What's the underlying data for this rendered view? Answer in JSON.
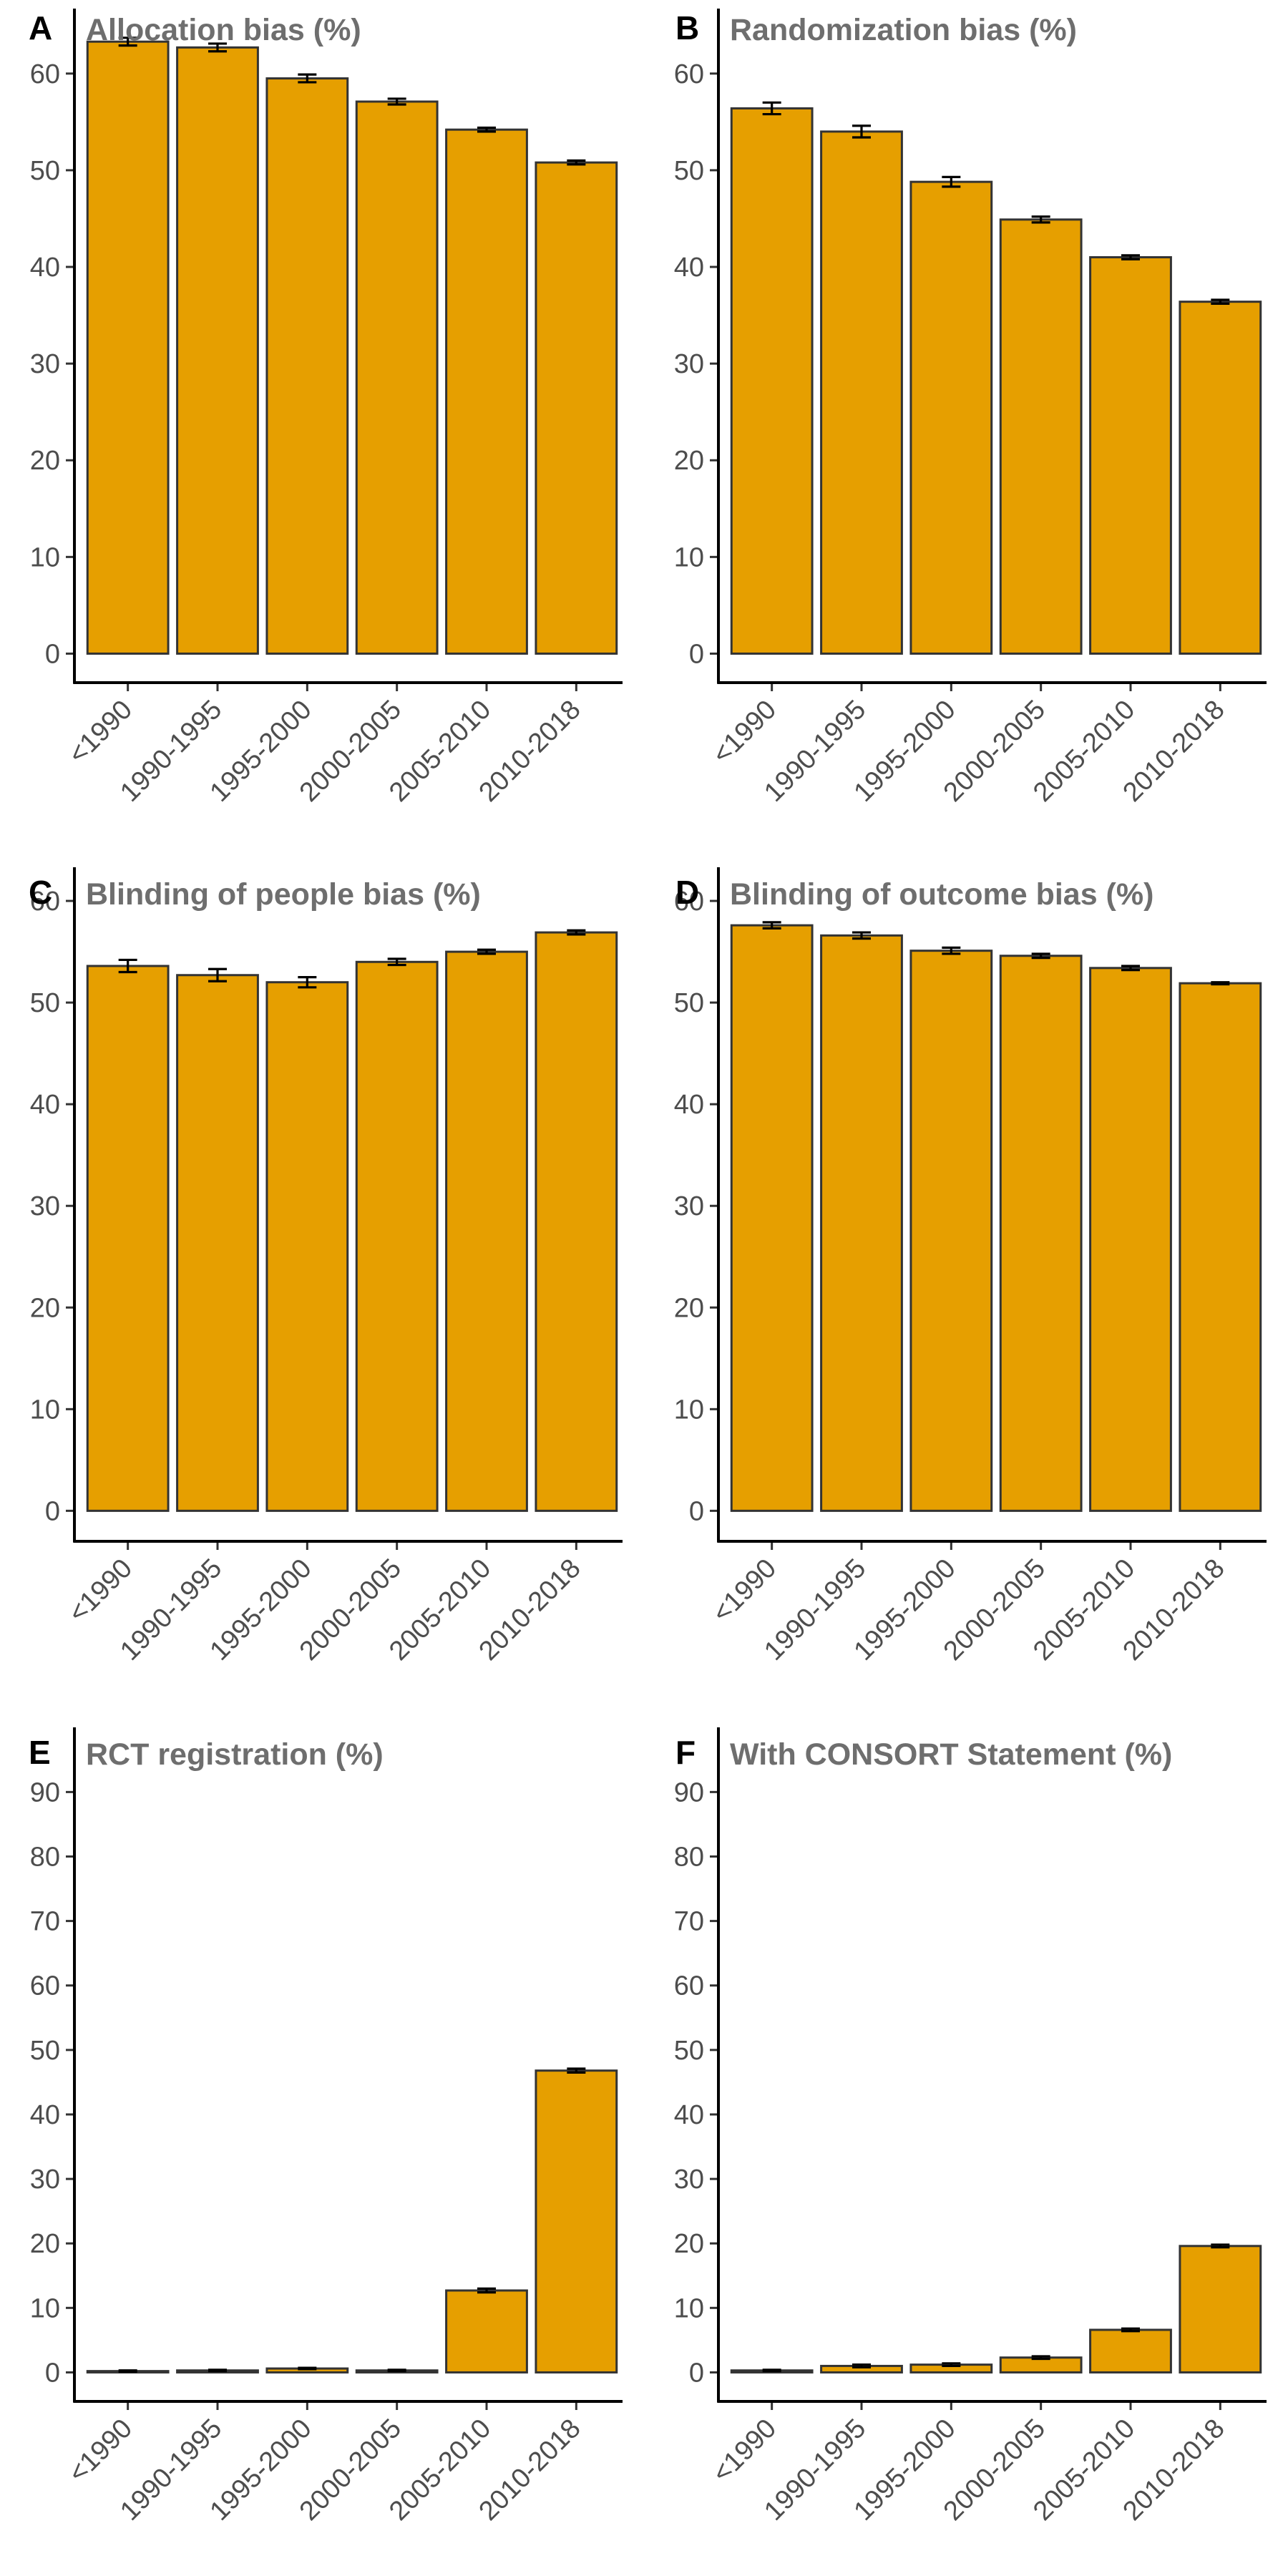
{
  "chart_data": [
    {
      "panel": "A",
      "type": "bar",
      "title": "Allocation bias (%)",
      "categories": [
        "<1990",
        "1990-1995",
        "1995-2000",
        "2000-2005",
        "2005-2010",
        "2010-2018"
      ],
      "values": [
        63.3,
        62.7,
        59.5,
        57.1,
        54.2,
        50.8
      ],
      "errors": [
        0.4,
        0.4,
        0.4,
        0.3,
        0.2,
        0.2
      ],
      "yticks": [
        0,
        10,
        20,
        30,
        40,
        50,
        60
      ],
      "ylim": [
        -3,
        64.5
      ],
      "bar_color": "#E69F00",
      "xlabel": "",
      "ylabel": ""
    },
    {
      "panel": "B",
      "type": "bar",
      "title": "Randomization bias (%)",
      "categories": [
        "<1990",
        "1990-1995",
        "1995-2000",
        "2000-2005",
        "2005-2010",
        "2010-2018"
      ],
      "values": [
        56.4,
        54.0,
        48.8,
        44.9,
        41.0,
        36.4
      ],
      "errors": [
        0.6,
        0.6,
        0.5,
        0.3,
        0.2,
        0.2
      ],
      "yticks": [
        0,
        10,
        20,
        30,
        40,
        50,
        60
      ],
      "ylim": [
        -3,
        64.5
      ],
      "bar_color": "#E69F00",
      "xlabel": "",
      "ylabel": ""
    },
    {
      "panel": "C",
      "type": "bar",
      "title": "Blinding of people bias (%)",
      "categories": [
        "<1990",
        "1990-1995",
        "1995-2000",
        "2000-2005",
        "2005-2010",
        "2010-2018"
      ],
      "values": [
        53.6,
        52.7,
        52.0,
        54.0,
        55.0,
        56.9
      ],
      "errors": [
        0.6,
        0.6,
        0.5,
        0.3,
        0.2,
        0.2
      ],
      "yticks": [
        0,
        10,
        20,
        30,
        40,
        50,
        60
      ],
      "ylim": [
        -3,
        61.2
      ],
      "bar_color": "#E69F00",
      "xlabel": "",
      "ylabel": ""
    },
    {
      "panel": "D",
      "type": "bar",
      "title": "Blinding of outcome bias (%)",
      "categories": [
        "<1990",
        "1990-1995",
        "1995-2000",
        "2000-2005",
        "2005-2010",
        "2010-2018"
      ],
      "values": [
        57.6,
        56.6,
        55.1,
        54.6,
        53.4,
        51.9
      ],
      "errors": [
        0.3,
        0.3,
        0.3,
        0.2,
        0.2,
        0.1
      ],
      "yticks": [
        0,
        10,
        20,
        30,
        40,
        50,
        60
      ],
      "ylim": [
        -3,
        61.2
      ],
      "bar_color": "#E69F00",
      "xlabel": "",
      "ylabel": ""
    },
    {
      "panel": "E",
      "type": "bar",
      "title": "RCT registration (%)",
      "categories": [
        "<1990",
        "1990-1995",
        "1995-2000",
        "2000-2005",
        "2005-2010",
        "2010-2018"
      ],
      "values": [
        0.2,
        0.3,
        0.6,
        0.3,
        12.7,
        46.8
      ],
      "errors": [
        0.1,
        0.1,
        0.1,
        0.1,
        0.3,
        0.3
      ],
      "yticks": [
        0,
        10,
        20,
        30,
        40,
        50,
        60,
        70,
        80,
        90
      ],
      "ylim": [
        -4.5,
        96.7
      ],
      "bar_color": "#E69F00",
      "xlabel": "",
      "ylabel": ""
    },
    {
      "panel": "F",
      "type": "bar",
      "title": "With CONSORT Statement (%)",
      "categories": [
        "<1990",
        "1990-1995",
        "1995-2000",
        "2000-2005",
        "2005-2010",
        "2010-2018"
      ],
      "values": [
        0.3,
        1.0,
        1.2,
        2.3,
        6.6,
        19.6
      ],
      "errors": [
        0.1,
        0.2,
        0.2,
        0.2,
        0.2,
        0.2
      ],
      "yticks": [
        0,
        10,
        20,
        30,
        40,
        50,
        60,
        70,
        80,
        90
      ],
      "ylim": [
        -4.5,
        96.7
      ],
      "bar_color": "#E69F00",
      "xlabel": "",
      "ylabel": ""
    }
  ]
}
